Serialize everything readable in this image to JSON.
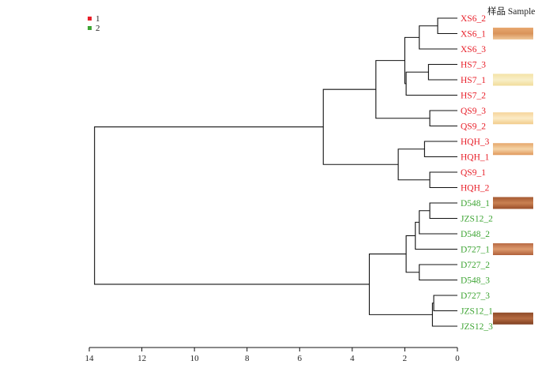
{
  "chart_data": {
    "type": "dendrogram",
    "orientation": "right-to-left",
    "xlim": [
      14,
      0
    ],
    "x_ticks": [
      14,
      12,
      10,
      8,
      6,
      4,
      2,
      0
    ],
    "sample_title": "样品 Sample",
    "legend": [
      {
        "label": "1",
        "color": "#e8202a"
      },
      {
        "label": "2",
        "color": "#3fa535"
      }
    ],
    "leaves": [
      {
        "label": "XS6_2",
        "group": "1"
      },
      {
        "label": "XS6_1",
        "group": "1"
      },
      {
        "label": "XS6_3",
        "group": "1"
      },
      {
        "label": "HS7_3",
        "group": "1"
      },
      {
        "label": "HS7_1",
        "group": "1"
      },
      {
        "label": "HS7_2",
        "group": "1"
      },
      {
        "label": "QS9_3",
        "group": "1"
      },
      {
        "label": "QS9_2",
        "group": "1"
      },
      {
        "label": "HQH_3",
        "group": "1"
      },
      {
        "label": "HQH_1",
        "group": "1"
      },
      {
        "label": "QS9_1",
        "group": "1"
      },
      {
        "label": "HQH_2",
        "group": "1"
      },
      {
        "label": "D548_1",
        "group": "2"
      },
      {
        "label": "JZS12_2",
        "group": "2"
      },
      {
        "label": "D548_2",
        "group": "2"
      },
      {
        "label": "D727_1",
        "group": "2"
      },
      {
        "label": "D727_2",
        "group": "2"
      },
      {
        "label": "D548_3",
        "group": "2"
      },
      {
        "label": "D727_3",
        "group": "2"
      },
      {
        "label": "JZS12_1",
        "group": "2"
      },
      {
        "label": "JZS12_3",
        "group": "2"
      }
    ],
    "merges": [
      {
        "a": "L0",
        "b": "L1",
        "height": 0.75
      },
      {
        "a": "M0",
        "b": "L2",
        "height": 1.45
      },
      {
        "a": "L3",
        "b": "L4",
        "height": 1.1
      },
      {
        "a": "M2",
        "b": "L5",
        "height": 1.95
      },
      {
        "a": "M1",
        "b": "M3",
        "height": 2.0
      },
      {
        "a": "L6",
        "b": "L7",
        "height": 1.05
      },
      {
        "a": "M4",
        "b": "M5",
        "height": 3.1
      },
      {
        "a": "L8",
        "b": "L9",
        "height": 1.25
      },
      {
        "a": "L10",
        "b": "L11",
        "height": 1.05
      },
      {
        "a": "M7",
        "b": "M8",
        "height": 2.25
      },
      {
        "a": "M6",
        "b": "M9",
        "height": 5.1
      },
      {
        "a": "L12",
        "b": "L13",
        "height": 1.05
      },
      {
        "a": "M11",
        "b": "L14",
        "height": 1.45
      },
      {
        "a": "M12",
        "b": "L15",
        "height": 1.6
      },
      {
        "a": "L16",
        "b": "L17",
        "height": 1.45
      },
      {
        "a": "M13",
        "b": "M14",
        "height": 1.95
      },
      {
        "a": "L18",
        "b": "L19",
        "height": 0.9
      },
      {
        "a": "M16",
        "b": "L20",
        "height": 0.95
      },
      {
        "a": "M15",
        "b": "M17",
        "height": 3.35
      },
      {
        "a": "M10",
        "b": "M18",
        "height": 13.8
      }
    ],
    "swatches": [
      {
        "name": "swatch-xs6",
        "rows": [
          0,
          2
        ],
        "colors": [
          "#e8a870",
          "#d9935a",
          "#efc89a"
        ]
      },
      {
        "name": "swatch-hs7",
        "rows": [
          3,
          5
        ],
        "colors": [
          "#f4e2a6",
          "#f8efc8",
          "#f1dc9a"
        ]
      },
      {
        "name": "swatch-qs9",
        "rows": [
          6,
          7
        ],
        "colors": [
          "#f6d49a",
          "#fbebc6",
          "#f2cc8a"
        ]
      },
      {
        "name": "swatch-hqh",
        "rows": [
          8,
          9
        ],
        "colors": [
          "#e6a66a",
          "#f5d3a6",
          "#e0985c"
        ]
      },
      {
        "name": "swatch-d548",
        "rows": [
          12,
          12
        ],
        "colors": [
          "#a55a32",
          "#c98052",
          "#9a4e2a"
        ]
      },
      {
        "name": "swatch-d727",
        "rows": [
          15,
          15
        ],
        "colors": [
          "#b76a44",
          "#dd9a6e",
          "#b0603a"
        ]
      },
      {
        "name": "swatch-jzs12",
        "rows": [
          19,
          20
        ],
        "colors": [
          "#8e4a28",
          "#b56b42",
          "#7e3e20"
        ]
      }
    ]
  }
}
